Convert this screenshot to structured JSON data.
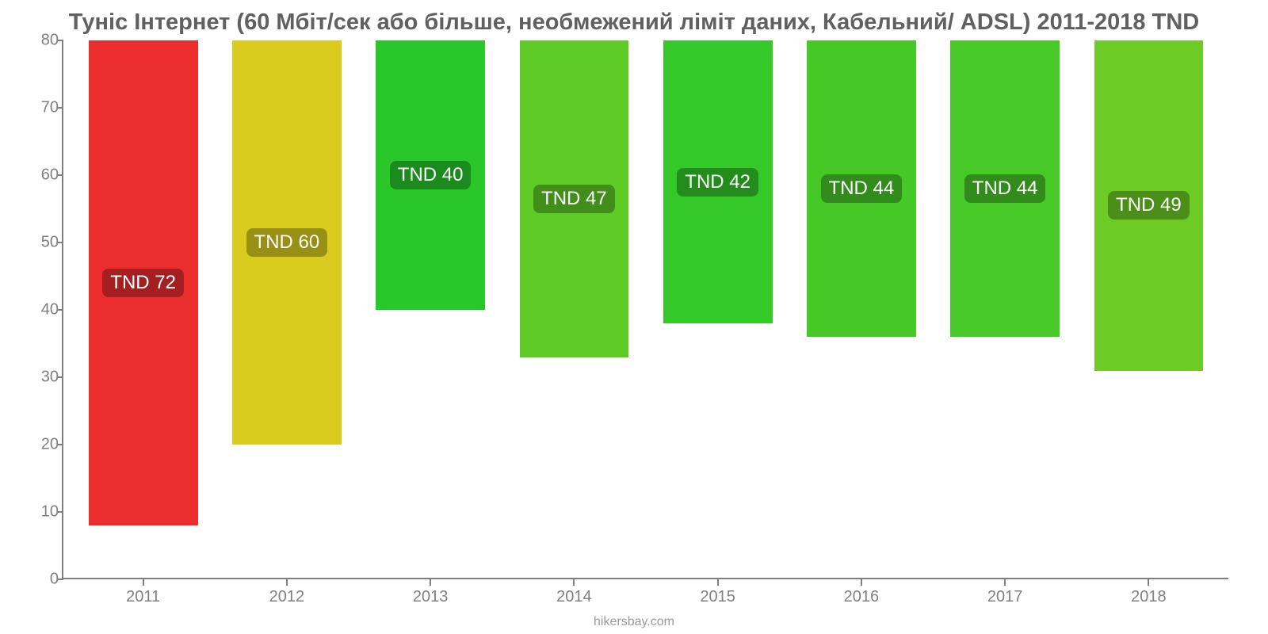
{
  "chart": {
    "type": "bar",
    "title": "Туніс Інтернет (60 Мбіт/сек або більше, необмежений ліміт даних, Кабельний/ ADSL) 2011-2018 TND",
    "title_fontsize": 29,
    "title_color": "#606060",
    "background_color": "#ffffff",
    "axis_color": "#808080",
    "tick_font_color": "#808080",
    "tick_fontsize": 20,
    "y": {
      "min": 0,
      "max": 80,
      "ticks": [
        0,
        10,
        20,
        30,
        40,
        50,
        60,
        70,
        80
      ]
    },
    "bar_width_ratio": 0.76,
    "data_label_fontsize": 24,
    "data_label_text_color": "#ffffff",
    "data_label_radius": 8,
    "bars": [
      {
        "year": "2011",
        "value": 72,
        "label": "TND 72",
        "color": "#eb2d2e",
        "label_bg": "#a51f20"
      },
      {
        "year": "2012",
        "value": 60,
        "label": "TND 60",
        "color": "#dacc1f",
        "label_bg": "#988f15"
      },
      {
        "year": "2013",
        "value": 40,
        "label": "TND 40",
        "color": "#29c72a",
        "label_bg": "#1c8b1d"
      },
      {
        "year": "2014",
        "value": 47,
        "label": "TND 47",
        "color": "#5ecb27",
        "label_bg": "#418e1b"
      },
      {
        "year": "2015",
        "value": 42,
        "label": "TND 42",
        "color": "#34c828",
        "label_bg": "#248c1c"
      },
      {
        "year": "2016",
        "value": 44,
        "label": "TND 44",
        "color": "#46c927",
        "label_bg": "#318c1b"
      },
      {
        "year": "2017",
        "value": 44,
        "label": "TND 44",
        "color": "#47c927",
        "label_bg": "#318c1b"
      },
      {
        "year": "2018",
        "value": 49,
        "label": "TND 49",
        "color": "#6dcb26",
        "label_bg": "#4c8e1a"
      }
    ],
    "attribution": "hikersbay.com",
    "attribution_color": "#9a9a9a",
    "attribution_fontsize": 16
  }
}
